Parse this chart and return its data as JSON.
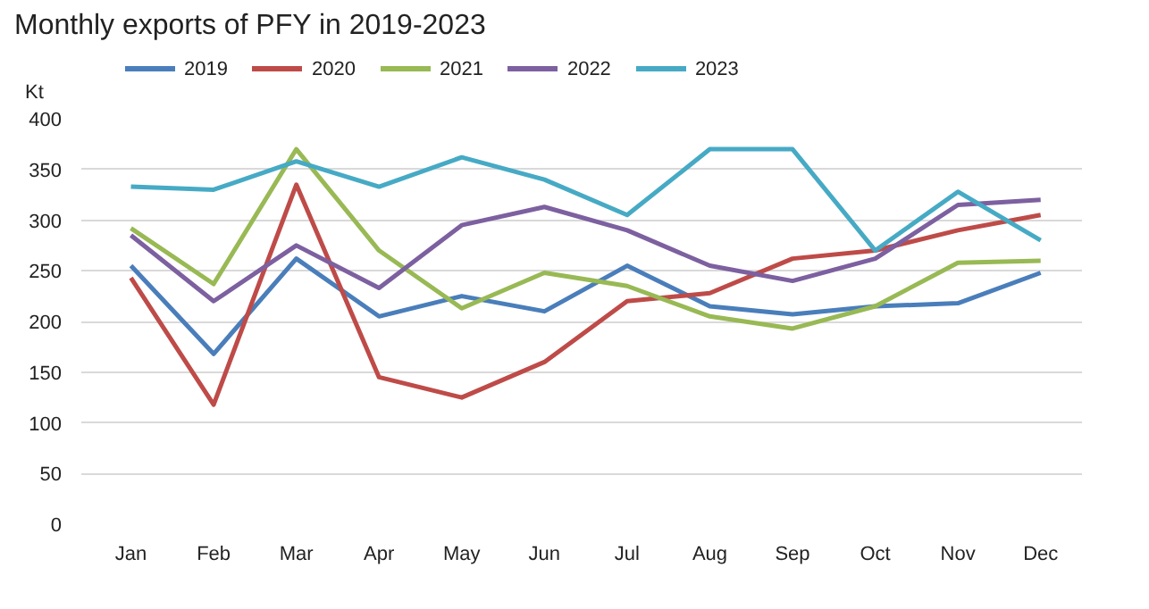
{
  "chart_data": {
    "type": "line",
    "title": "Monthly exports of PFY in 2019-2023",
    "ylabel": "Kt",
    "categories": [
      "Jan",
      "Feb",
      "Mar",
      "Apr",
      "May",
      "Jun",
      "Jul",
      "Aug",
      "Sep",
      "Oct",
      "Nov",
      "Dec"
    ],
    "series": [
      {
        "name": "2019",
        "color": "#4a7ebb",
        "values": [
          255,
          168,
          262,
          205,
          225,
          210,
          255,
          215,
          207,
          215,
          218,
          248
        ]
      },
      {
        "name": "2020",
        "color": "#be4b48",
        "values": [
          243,
          118,
          335,
          145,
          125,
          160,
          220,
          228,
          262,
          270,
          290,
          305
        ]
      },
      {
        "name": "2021",
        "color": "#98b954",
        "values": [
          292,
          237,
          370,
          270,
          213,
          248,
          235,
          205,
          193,
          215,
          258,
          260
        ]
      },
      {
        "name": "2022",
        "color": "#7d60a0",
        "values": [
          285,
          220,
          275,
          233,
          295,
          313,
          290,
          255,
          240,
          262,
          315,
          320
        ]
      },
      {
        "name": "2023",
        "color": "#46aac5",
        "values": [
          333,
          330,
          358,
          333,
          362,
          340,
          305,
          370,
          370,
          270,
          328,
          280
        ]
      }
    ],
    "ylim": [
      0,
      400
    ],
    "yticks": [
      0,
      50,
      100,
      150,
      200,
      250,
      300,
      350,
      400
    ],
    "grid": "y",
    "legend": "top",
    "marker": "none",
    "line_style": "solid"
  }
}
